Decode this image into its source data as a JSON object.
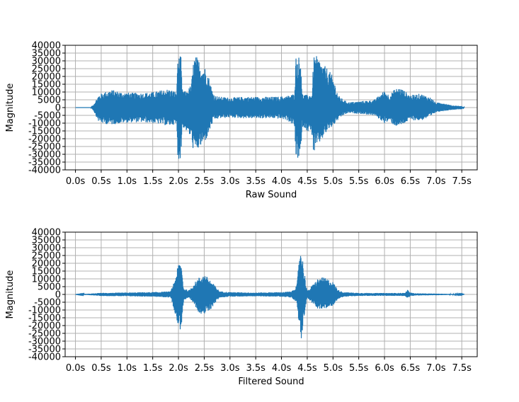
{
  "chart_data": [
    {
      "type": "line",
      "title": "",
      "xlabel": "Raw Sound",
      "ylabel": "Magnitude",
      "xlim": [
        -0.2,
        7.8
      ],
      "ylim": [
        -40000,
        40000
      ],
      "x_ticks": [
        0,
        0.5,
        1,
        1.5,
        2,
        2.5,
        3,
        3.5,
        4,
        4.5,
        5,
        5.5,
        6,
        6.5,
        7,
        7.5
      ],
      "x_tick_labels": [
        "0.0s",
        "0.5s",
        "1.0s",
        "1.5s",
        "2.0s",
        "2.5s",
        "3.0s",
        "3.5s",
        "4.0s",
        "4.5s",
        "5.0s",
        "5.5s",
        "6.0s",
        "6.5s",
        "7.0s",
        "7.5s"
      ],
      "y_ticks": [
        40000,
        35000,
        30000,
        25000,
        20000,
        15000,
        10000,
        5000,
        0,
        -5000,
        -10000,
        -15000,
        -20000,
        -25000,
        -30000,
        -35000,
        -40000
      ],
      "y_tick_labels": [
        "40000",
        "35000",
        "30000",
        "25000",
        "20000",
        "15000",
        "10000",
        "5000",
        "0",
        "-5000",
        "-10000",
        "-15000",
        "-20000",
        "-25000",
        "-30000",
        "-35000",
        "-40000"
      ],
      "grid": true,
      "color": "#1f77b4",
      "series": [
        {
          "envelope": {
            "t": [
              0.0,
              0.3,
              0.35,
              0.45,
              0.55,
              0.7,
              0.9,
              1.1,
              1.3,
              1.5,
              1.7,
              1.8,
              1.9,
              1.97,
              1.98,
              2.05,
              2.07,
              2.15,
              2.25,
              2.3,
              2.35,
              2.45,
              2.55,
              2.65,
              2.7,
              2.8,
              3.0,
              3.3,
              3.6,
              3.9,
              4.1,
              4.25,
              4.28,
              4.38,
              4.4,
              4.5,
              4.6,
              4.62,
              4.7,
              4.8,
              4.9,
              5.0,
              5.1,
              5.2,
              5.3,
              5.5,
              5.8,
              6.0,
              6.1,
              6.2,
              6.3,
              6.5,
              6.7,
              6.9,
              7.0,
              7.1,
              7.3,
              7.5,
              7.55
            ],
            "max": [
              0,
              0,
              2000,
              8000,
              10000,
              11500,
              10000,
              9500,
              9500,
              10000,
              11500,
              12000,
              11000,
              10000,
              33000,
              33000,
              12000,
              10000,
              15000,
              33000,
              33000,
              28000,
              25000,
              12000,
              8000,
              7000,
              6500,
              7000,
              7000,
              7000,
              7500,
              9000,
              33000,
              33000,
              9000,
              8000,
              9000,
              33000,
              33000,
              28000,
              25000,
              20000,
              8000,
              5000,
              3500,
              4000,
              5000,
              11000,
              8000,
              12000,
              13000,
              8000,
              9000,
              6500,
              3000,
              3500,
              1500,
              1000,
              0
            ],
            "min": [
              0,
              0,
              -2000,
              -9000,
              -10500,
              -11000,
              -10000,
              -9500,
              -9500,
              -10000,
              -11000,
              -12000,
              -11000,
              -12000,
              -33000,
              -33000,
              -12000,
              -15000,
              -20000,
              -30000,
              -28000,
              -25000,
              -20000,
              -11000,
              -8000,
              -7000,
              -6500,
              -7000,
              -7000,
              -7000,
              -8000,
              -12000,
              -33000,
              -33000,
              -12000,
              -15000,
              -18000,
              -30000,
              -25000,
              -20000,
              -15000,
              -12000,
              -8000,
              -5000,
              -3500,
              -4000,
              -5000,
              -10000,
              -9000,
              -12000,
              -12000,
              -8000,
              -8500,
              -6000,
              -3000,
              -2500,
              -1500,
              -1000,
              0
            ]
          }
        }
      ]
    },
    {
      "type": "line",
      "title": "",
      "xlabel": "Filtered Sound",
      "ylabel": "Magnitude",
      "xlim": [
        -0.2,
        7.8
      ],
      "ylim": [
        -40000,
        40000
      ],
      "x_ticks": [
        0,
        0.5,
        1,
        1.5,
        2,
        2.5,
        3,
        3.5,
        4,
        4.5,
        5,
        5.5,
        6,
        6.5,
        7,
        7.5
      ],
      "x_tick_labels": [
        "0.0s",
        "0.5s",
        "1.0s",
        "1.5s",
        "2.0s",
        "2.5s",
        "3.0s",
        "3.5s",
        "4.0s",
        "4.5s",
        "5.0s",
        "5.5s",
        "6.0s",
        "6.5s",
        "7.0s",
        "7.5s"
      ],
      "y_ticks": [
        40000,
        35000,
        30000,
        25000,
        20000,
        15000,
        10000,
        5000,
        0,
        -5000,
        -10000,
        -15000,
        -20000,
        -25000,
        -30000,
        -35000,
        -40000
      ],
      "y_tick_labels": [
        "40000",
        "35000",
        "30000",
        "25000",
        "20000",
        "15000",
        "10000",
        "5000",
        "0",
        "-5000",
        "-10000",
        "-15000",
        "-20000",
        "-25000",
        "-30000",
        "-35000",
        "-40000"
      ],
      "grid": true,
      "color": "#1f77b4",
      "series": [
        {
          "envelope": {
            "t": [
              0.0,
              0.3,
              0.5,
              1.0,
              1.5,
              1.85,
              1.95,
              2.0,
              2.05,
              2.1,
              2.2,
              2.3,
              2.4,
              2.5,
              2.6,
              2.7,
              2.8,
              3.0,
              3.5,
              4.0,
              4.2,
              4.3,
              4.35,
              4.38,
              4.42,
              4.5,
              4.6,
              4.7,
              4.8,
              4.9,
              5.0,
              5.1,
              5.2,
              5.5,
              6.0,
              6.4,
              6.45,
              6.5,
              6.6,
              7.0,
              7.5,
              7.55
            ],
            "max": [
              0,
              500,
              1000,
              1200,
              1500,
              2000,
              12000,
              20000,
              22000,
              4000,
              2500,
              7000,
              11000,
              13000,
              10000,
              6000,
              2000,
              1500,
              1200,
              1500,
              2000,
              6000,
              26000,
              33000,
              20000,
              2000,
              6000,
              10000,
              11000,
              10000,
              8000,
              3000,
              1500,
              1000,
              900,
              1000,
              3000,
              1200,
              700,
              500,
              200,
              0
            ],
            "min": [
              0,
              -500,
              -1000,
              -1200,
              -1500,
              -2000,
              -14000,
              -22000,
              -23000,
              -4000,
              -2500,
              -6000,
              -12000,
              -13000,
              -11000,
              -6000,
              -2000,
              -1500,
              -1200,
              -1500,
              -2000,
              -6000,
              -22000,
              -32000,
              -18000,
              -2000,
              -6000,
              -9000,
              -10000,
              -9000,
              -7000,
              -3000,
              -1500,
              -1000,
              -900,
              -1000,
              -2500,
              -1200,
              -700,
              -500,
              -200,
              0
            ]
          }
        }
      ]
    }
  ]
}
